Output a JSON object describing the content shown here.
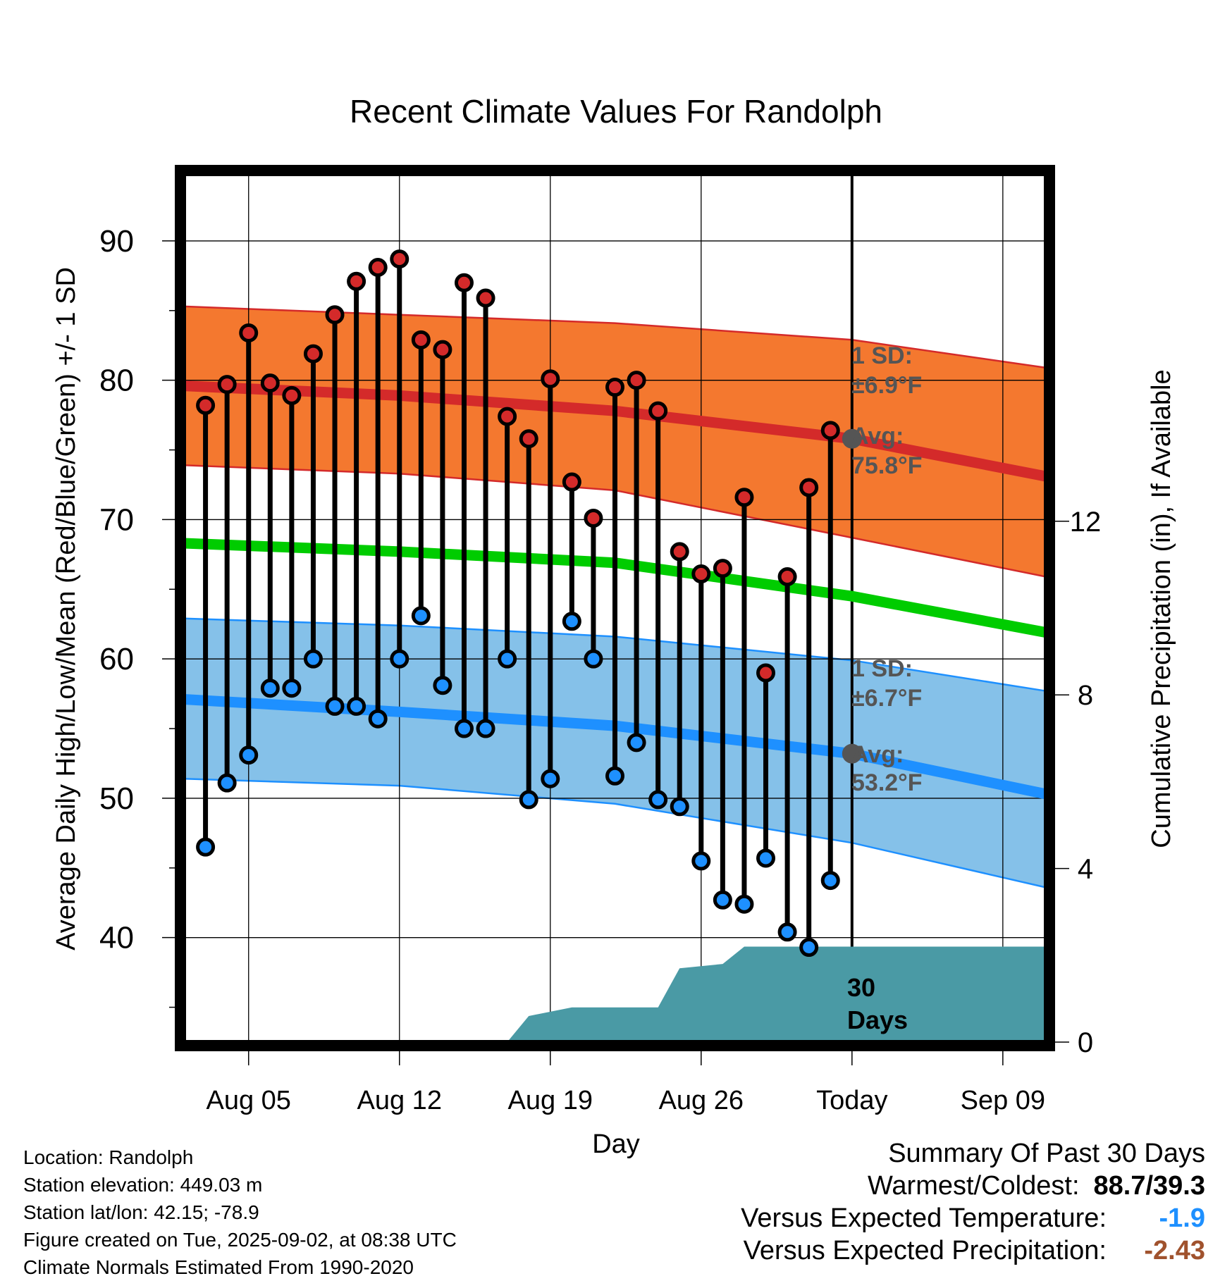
{
  "chart_data": {
    "type": "line",
    "title": "Recent Climate Values For Randolph",
    "xlabel": "Day",
    "ylabel": "Average Daily High/Low/Mean (Red/Blue/Green) +/- 1 SD",
    "y2label": "Cumulative Precipitation (in), If Available",
    "ylim": [
      32.5,
      94.8
    ],
    "y2lim": [
      0,
      20
    ],
    "y_ticks": [
      "40",
      "50",
      "60",
      "70",
      "80",
      "90"
    ],
    "y2_ticks": [
      "0",
      "4",
      "8",
      "12"
    ],
    "x_range_days": [
      "2025-08-02",
      "2025-09-11"
    ],
    "x_tick_labels": [
      "Aug 05",
      "Aug 12",
      "Aug 19",
      "Aug 26",
      "Today",
      "Sep 09"
    ],
    "x_tick_dates": [
      "2025-08-05",
      "2025-08-12",
      "2025-08-19",
      "2025-08-26",
      "2025-09-02",
      "2025-09-09"
    ],
    "grid": true,
    "today": "2025-09-02",
    "daily_observations": {
      "dates": [
        "2025-08-03",
        "2025-08-04",
        "2025-08-05",
        "2025-08-06",
        "2025-08-07",
        "2025-08-08",
        "2025-08-09",
        "2025-08-10",
        "2025-08-11",
        "2025-08-12",
        "2025-08-13",
        "2025-08-14",
        "2025-08-15",
        "2025-08-16",
        "2025-08-17",
        "2025-08-18",
        "2025-08-19",
        "2025-08-20",
        "2025-08-21",
        "2025-08-22",
        "2025-08-23",
        "2025-08-24",
        "2025-08-25",
        "2025-08-26",
        "2025-08-27",
        "2025-08-28",
        "2025-08-29",
        "2025-08-30",
        "2025-08-31",
        "2025-09-01"
      ],
      "high": [
        78.2,
        79.7,
        83.4,
        79.8,
        78.9,
        81.9,
        84.7,
        87.1,
        88.1,
        88.7,
        82.9,
        82.2,
        87.0,
        85.9,
        77.4,
        75.8,
        80.1,
        72.7,
        70.1,
        79.5,
        80.0,
        77.8,
        67.7,
        66.1,
        66.5,
        71.6,
        59.0,
        65.9,
        72.3,
        76.4
      ],
      "low": [
        46.5,
        51.1,
        53.1,
        57.9,
        57.9,
        60.0,
        56.6,
        56.6,
        55.7,
        60.0,
        63.1,
        58.1,
        55.0,
        55.0,
        60.0,
        49.9,
        51.4,
        62.7,
        60.0,
        51.6,
        54.0,
        49.9,
        49.4,
        45.5,
        42.7,
        42.4,
        45.7,
        40.4,
        39.3,
        44.1
      ]
    },
    "normal_series": [
      {
        "name": "Avg",
        "kind": "high",
        "color": "#d42a2a",
        "dates": [
          "2025-08-02",
          "2025-08-12",
          "2025-08-22",
          "2025-09-02",
          "2025-09-11"
        ],
        "values": [
          79.6,
          78.9,
          77.8,
          75.8,
          73.1
        ]
      },
      {
        "name": "1 SD",
        "kind": "high_band",
        "color": "#f4782f",
        "sd": "±6.9°F",
        "dates": [
          "2025-08-02",
          "2025-08-12",
          "2025-08-22",
          "2025-09-02",
          "2025-09-11"
        ],
        "upper": [
          85.3,
          84.7,
          84.1,
          82.9,
          80.9
        ],
        "lower": [
          73.9,
          73.3,
          72.1,
          68.7,
          65.9
        ]
      },
      {
        "name": "Mean",
        "kind": "mean",
        "color": "#00cc00",
        "dates": [
          "2025-08-02",
          "2025-08-12",
          "2025-08-22",
          "2025-09-02",
          "2025-09-11"
        ],
        "values": [
          68.3,
          67.7,
          66.9,
          64.5,
          61.9
        ]
      },
      {
        "name": "Avg",
        "kind": "low",
        "color": "#1e90ff",
        "dates": [
          "2025-08-02",
          "2025-08-12",
          "2025-08-22",
          "2025-09-02",
          "2025-09-11"
        ],
        "values": [
          57.1,
          56.2,
          55.2,
          53.2,
          50.3
        ]
      },
      {
        "name": "1 SD",
        "kind": "low_band",
        "color": "#85c1e9",
        "sd": "±6.7°F",
        "dates": [
          "2025-08-02",
          "2025-08-12",
          "2025-08-22",
          "2025-09-02",
          "2025-09-11"
        ],
        "upper": [
          62.9,
          62.4,
          61.6,
          59.9,
          57.7
        ],
        "lower": [
          51.4,
          50.9,
          49.6,
          46.8,
          43.6
        ]
      }
    ],
    "cumulative_precipitation": {
      "color": "#4a9aa5",
      "dates": [
        "2025-08-17",
        "2025-08-18",
        "2025-08-20",
        "2025-08-24",
        "2025-08-25",
        "2025-08-27",
        "2025-08-28",
        "2025-09-02",
        "2025-09-11"
      ],
      "values": [
        0.0,
        0.6,
        0.8,
        0.8,
        1.7,
        1.8,
        2.2,
        2.2,
        2.2
      ]
    },
    "annotations": {
      "high_sd_label": "1 SD:",
      "high_sd_value": "±6.9°F",
      "high_avg_label": "Avg:",
      "high_avg_value": "75.8°F",
      "low_sd_label": "1 SD:",
      "low_sd_value": "±6.7°F",
      "low_avg_label": "Avg:",
      "low_avg_value": "53.2°F",
      "period_line1": "30",
      "period_line2": "Days"
    }
  },
  "info": {
    "location": "Location: Randolph",
    "elevation": "Station elevation: 449.03 m",
    "latlon": "Station lat/lon: 42.15; -78.9",
    "created": "Figure created on Tue, 2025-09-02, at 08:38 UTC",
    "normals": "Climate Normals Estimated From 1990-2020"
  },
  "summary": {
    "title": "Summary Of Past 30 Days",
    "warmest_coldest_label": "Warmest/Coldest:",
    "warmest_coldest_value": "88.7/39.3",
    "temp_label": "Versus Expected Temperature:",
    "temp_value": "-1.9",
    "temp_color": "#1e90ff",
    "precip_label": "Versus Expected Precipitation:",
    "precip_value": "-2.43",
    "precip_color": "#a0522d"
  }
}
